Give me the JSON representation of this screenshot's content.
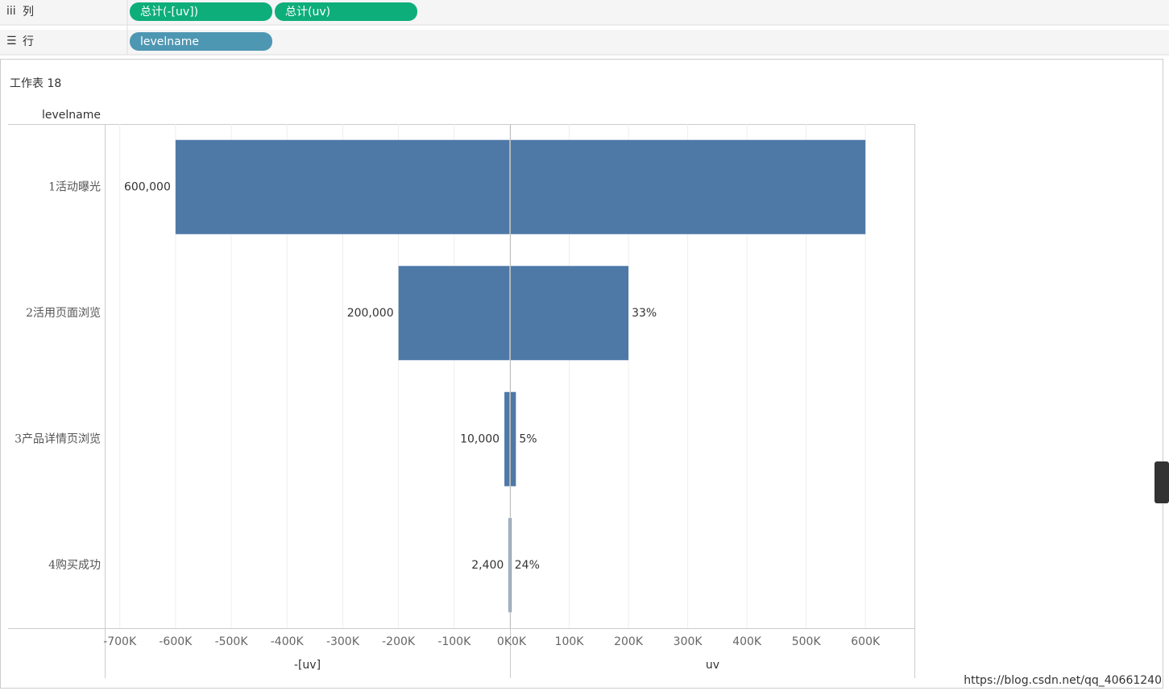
{
  "shelves": {
    "columns": {
      "label": "列",
      "pills": [
        "总计(-[uv])",
        "总计(uv)"
      ]
    },
    "rows": {
      "label": "行",
      "pills": [
        "levelname"
      ]
    }
  },
  "sheet_title": "工作表 18",
  "row_header": "levelname",
  "watermark": "https://blog.csdn.net/qq_40661240",
  "chart_data": [
    {
      "type": "bar",
      "orientation": "horizontal",
      "x_label": "-[uv]",
      "color": "#4e79a7",
      "categories": [
        "1活动曝光",
        "2活用页面浏览",
        "3产品详情页浏览",
        "4购买成功"
      ],
      "values": [
        -600000,
        -200000,
        -10000,
        -2400
      ],
      "value_labels": [
        "600,000",
        "200,000",
        "10,000",
        "2,400"
      ],
      "xlim": [
        -727000,
        0
      ],
      "xticks": [
        {
          "value": -700000,
          "label": "-700K"
        },
        {
          "value": -600000,
          "label": "-600K"
        },
        {
          "value": -500000,
          "label": "-500K"
        },
        {
          "value": -400000,
          "label": "-400K"
        },
        {
          "value": -300000,
          "label": "-300K"
        },
        {
          "value": -200000,
          "label": "-200K"
        },
        {
          "value": -100000,
          "label": "-100K"
        },
        {
          "value": 0,
          "label": "0K"
        }
      ],
      "grid": true
    },
    {
      "type": "bar",
      "orientation": "horizontal",
      "x_label": "uv",
      "color": "#4e79a7",
      "values": [
        600000,
        200000,
        10000,
        2400
      ],
      "rate_labels": [
        null,
        "33%",
        "5%",
        "24%"
      ],
      "xlim": [
        0,
        684000
      ],
      "xticks": [
        {
          "value": 0,
          "label": "0K"
        },
        {
          "value": 100000,
          "label": "100K"
        },
        {
          "value": 200000,
          "label": "200K"
        },
        {
          "value": 300000,
          "label": "300K"
        },
        {
          "value": 400000,
          "label": "400K"
        },
        {
          "value": 500000,
          "label": "500K"
        },
        {
          "value": 600000,
          "label": "600K"
        }
      ],
      "grid": true
    }
  ]
}
